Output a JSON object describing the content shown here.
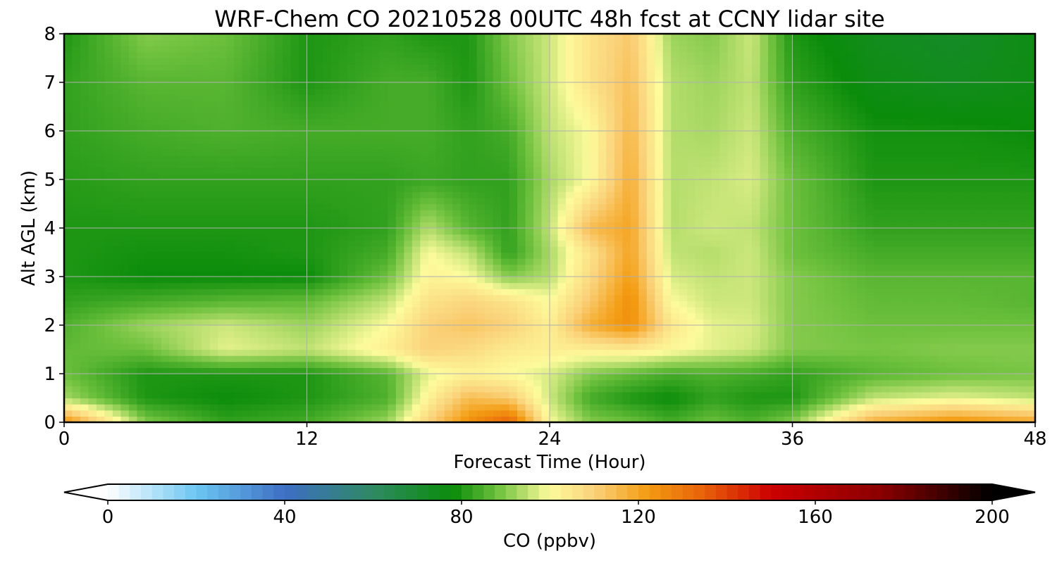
{
  "chart_data": {
    "type": "heatmap",
    "title": "WRF-Chem CO  20210528 00UTC 48h fcst at CCNY lidar site",
    "xlabel": "Forecast Time (Hour)",
    "ylabel": "Alt AGL (km)",
    "xlim": [
      0,
      48
    ],
    "ylim": [
      0,
      8
    ],
    "x_ticks": [
      "0",
      "12",
      "24",
      "36",
      "48"
    ],
    "y_ticks": [
      "0",
      "1",
      "2",
      "3",
      "4",
      "5",
      "6",
      "7",
      "8"
    ],
    "grid": true,
    "x": [
      0,
      4,
      8,
      12,
      16,
      18,
      20,
      22,
      24,
      26,
      28,
      30,
      32,
      34,
      36,
      40,
      44,
      48
    ],
    "y": [
      0,
      0.5,
      1,
      1.5,
      2,
      2.5,
      3,
      3.5,
      4,
      5,
      6,
      7,
      8
    ],
    "z": [
      [
        125,
        90,
        82,
        84,
        92,
        110,
        125,
        135,
        100,
        90,
        88,
        84,
        88,
        85,
        90,
        118,
        125,
        120
      ],
      [
        93,
        80,
        78,
        80,
        85,
        102,
        115,
        112,
        96,
        84,
        80,
        78,
        82,
        80,
        80,
        95,
        98,
        95
      ],
      [
        88,
        80,
        80,
        80,
        86,
        98,
        102,
        100,
        97,
        90,
        87,
        84,
        85,
        84,
        82,
        86,
        88,
        89
      ],
      [
        87,
        88,
        98,
        95,
        103,
        110,
        108,
        104,
        103,
        103,
        104,
        101,
        98,
        96,
        90,
        89,
        90,
        90
      ],
      [
        85,
        92,
        96,
        92,
        100,
        110,
        113,
        110,
        103,
        118,
        125,
        105,
        98,
        97,
        90,
        88,
        88,
        88
      ],
      [
        82,
        84,
        86,
        87,
        95,
        106,
        109,
        106,
        100,
        112,
        125,
        100,
        96,
        96,
        90,
        87,
        87,
        86
      ],
      [
        80,
        78,
        78,
        78,
        88,
        102,
        100,
        90,
        94,
        108,
        122,
        97,
        95,
        96,
        90,
        86,
        86,
        86
      ],
      [
        80,
        79,
        79,
        80,
        84,
        100,
        95,
        82,
        93,
        106,
        120,
        95,
        94,
        96,
        88,
        84,
        84,
        84
      ],
      [
        80,
        80,
        80,
        80,
        82,
        94,
        86,
        82,
        95,
        115,
        120,
        94,
        96,
        95,
        88,
        82,
        82,
        82
      ],
      [
        81,
        82,
        82,
        82,
        82,
        83,
        82,
        82,
        93,
        100,
        118,
        94,
        95,
        97,
        88,
        80,
        80,
        80
      ],
      [
        82,
        84,
        85,
        84,
        84,
        84,
        82,
        84,
        95,
        100,
        116,
        94,
        93,
        96,
        85,
        79,
        79,
        78
      ],
      [
        82,
        86,
        86,
        80,
        84,
        84,
        80,
        88,
        96,
        106,
        114,
        94,
        92,
        95,
        82,
        76,
        74,
        76
      ],
      [
        80,
        90,
        88,
        80,
        82,
        80,
        80,
        90,
        96,
        106,
        112,
        92,
        90,
        96,
        80,
        74,
        72,
        76
      ]
    ],
    "colorbar": {
      "label": "CO  (ppbv)",
      "range": [
        0,
        200
      ],
      "ticks": [
        "0",
        "40",
        "80",
        "120",
        "160",
        "200"
      ],
      "extend": "both",
      "stops": [
        {
          "v": 0,
          "c": "#ffffff"
        },
        {
          "v": 20,
          "c": "#6cc6f2"
        },
        {
          "v": 40,
          "c": "#3e6ec4"
        },
        {
          "v": 60,
          "c": "#2f8a62"
        },
        {
          "v": 78,
          "c": "#0a8c0a"
        },
        {
          "v": 88,
          "c": "#6cc03c"
        },
        {
          "v": 100,
          "c": "#fdfb9c"
        },
        {
          "v": 110,
          "c": "#fad27a"
        },
        {
          "v": 122,
          "c": "#f39c12"
        },
        {
          "v": 135,
          "c": "#e8600a"
        },
        {
          "v": 150,
          "c": "#cc0000"
        },
        {
          "v": 175,
          "c": "#8a0000"
        },
        {
          "v": 200,
          "c": "#000000"
        }
      ]
    }
  }
}
